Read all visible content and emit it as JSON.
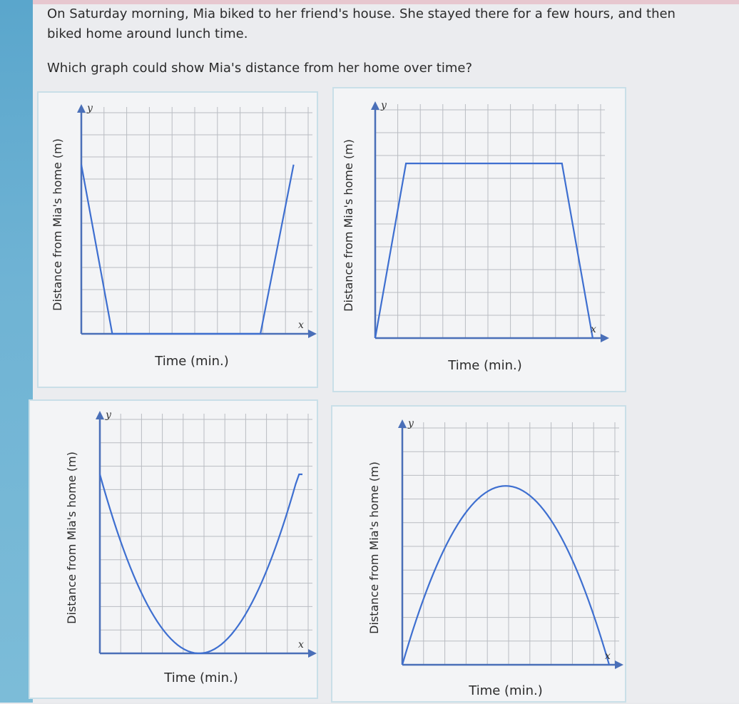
{
  "question": {
    "text": "On Saturday morning, Mia biked to her friend's house. She stayed there for a few hours, and then biked home around lunch time.",
    "prompt": "Which graph could show Mia's distance from her home over time?"
  },
  "choices": [
    {
      "id": "A",
      "ylabel": "Distance from Mia's home (m)",
      "xlabel": "Time (min.)",
      "x_axis_letter": "x",
      "y_axis_letter": "y",
      "shape": "start high, drop to zero, stay at zero, rise to high"
    },
    {
      "id": "B",
      "ylabel": "Distance from Mia's home (m)",
      "xlabel": "Time (min.)",
      "x_axis_letter": "x",
      "y_axis_letter": "y",
      "shape": "start at zero, rise to high, stay high, drop to zero"
    },
    {
      "id": "C",
      "ylabel": "Distance from Mia's home (m)",
      "xlabel": "Time (min.)",
      "x_axis_letter": "x",
      "y_axis_letter": "y",
      "shape": "U-shaped curve: high, down to zero, back to high"
    },
    {
      "id": "D",
      "ylabel": "Distance from Mia's home (m)",
      "xlabel": "Time (min.)",
      "x_axis_letter": "x",
      "y_axis_letter": "y",
      "shape": "arch curve: zero, up to high, back down to zero"
    }
  ],
  "colors": {
    "curve": "#3e6fd0",
    "axis": "#4a6fb8",
    "card_border": "#c9dfe8",
    "sidebar": "#6fb3d4"
  }
}
